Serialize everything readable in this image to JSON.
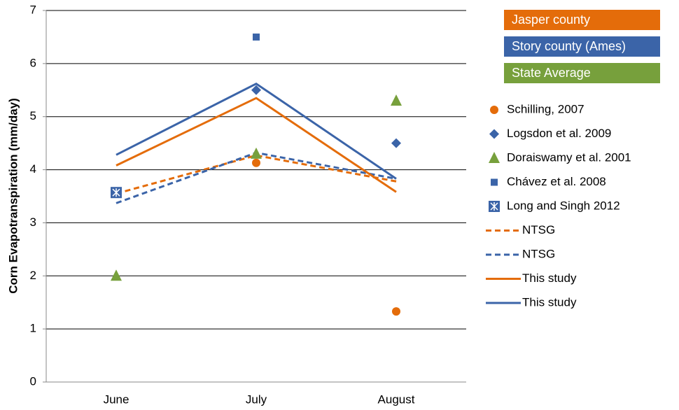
{
  "chart_data": {
    "type": "line",
    "y_label": "Corn Evapotranspiration (mm/day)",
    "categories": [
      "June",
      "July",
      "August"
    ],
    "ylim": [
      0,
      7
    ],
    "yticks": [
      0,
      1,
      2,
      3,
      4,
      5,
      6,
      7
    ],
    "grid": true,
    "groups": [
      {
        "name": "Jasper county",
        "color": "#e46c0a"
      },
      {
        "name": "Story county (Ames)",
        "color": "#3b64a8"
      },
      {
        "name": "State Average",
        "color": "#77a03c"
      }
    ],
    "series": [
      {
        "name": "Schilling, 2007",
        "color": "#e46c0a",
        "marker": "circle",
        "values": [
          null,
          4.13,
          1.33
        ]
      },
      {
        "name": "Logsdon et al. 2009",
        "color": "#3b64a8",
        "marker": "diamond",
        "values": [
          null,
          5.5,
          4.5
        ]
      },
      {
        "name": "Doraiswamy et al. 2001",
        "color": "#77a03c",
        "marker": "triangle",
        "values": [
          2.0,
          4.3,
          5.3
        ]
      },
      {
        "name": "Chávez et al. 2008",
        "color": "#3b64a8",
        "marker": "square",
        "values": [
          null,
          6.5,
          null
        ]
      },
      {
        "name": "Long and Singh 2012",
        "color": "#3b64a8",
        "marker": "xsquare",
        "values": [
          3.57,
          null,
          null
        ]
      },
      {
        "name": "NTSG",
        "color": "#e46c0a",
        "line": "dashed",
        "values": [
          3.55,
          4.27,
          3.78
        ]
      },
      {
        "name": "NTSG",
        "color": "#3b64a8",
        "line": "dashed",
        "values": [
          3.37,
          4.32,
          3.83
        ]
      },
      {
        "name": "This study",
        "color": "#e46c0a",
        "line": "solid",
        "values": [
          4.08,
          5.35,
          3.58
        ]
      },
      {
        "name": "This study",
        "color": "#3b64a8",
        "line": "solid",
        "values": [
          4.28,
          5.62,
          3.83
        ]
      }
    ]
  }
}
